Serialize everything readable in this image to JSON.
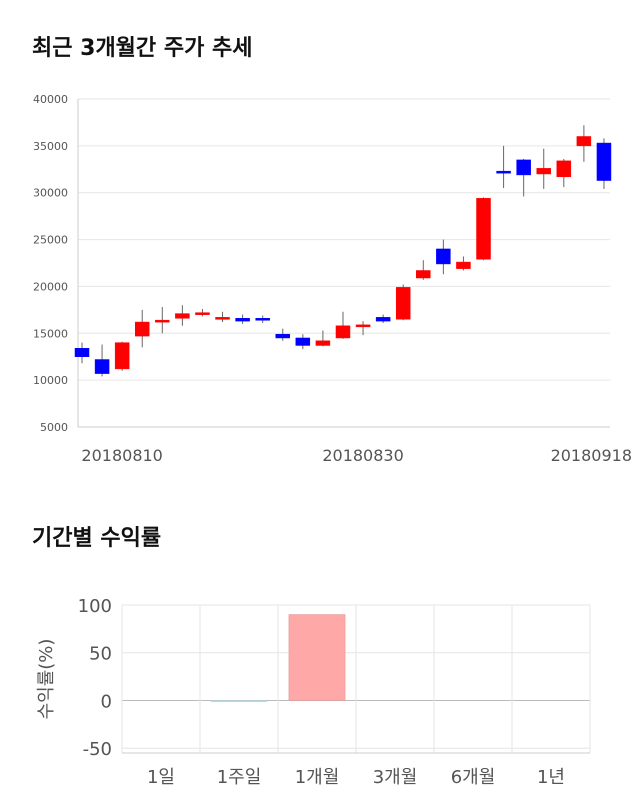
{
  "chart_data": [
    {
      "type": "candlestick",
      "title": "최근 3개월간 주가 추세",
      "ylim": [
        5000,
        40000
      ],
      "yticks": [
        "40000",
        "35000",
        "30000",
        "25000",
        "20000",
        "15000",
        "10000",
        "5000"
      ],
      "ytick_values": [
        40000,
        35000,
        30000,
        25000,
        20000,
        15000,
        10000,
        5000
      ],
      "xticks": [
        {
          "label": "20180810",
          "index": 2
        },
        {
          "label": "20180830",
          "index": 14
        },
        {
          "label": "20180918",
          "index": 26
        }
      ],
      "up_color": "#ff0000",
      "down_color": "#0000ff",
      "grid": true,
      "candles": [
        {
          "open": 13400,
          "close": 12500,
          "high": 14000,
          "low": 11800
        },
        {
          "open": 12200,
          "close": 10700,
          "high": 13800,
          "low": 10400
        },
        {
          "open": 11200,
          "close": 14000,
          "high": 14100,
          "low": 11000
        },
        {
          "open": 14700,
          "close": 16200,
          "high": 17500,
          "low": 13500
        },
        {
          "open": 16400,
          "close": 16400,
          "high": 17800,
          "low": 15000
        },
        {
          "open": 16600,
          "close": 17100,
          "high": 18000,
          "low": 15800
        },
        {
          "open": 17100,
          "close": 17200,
          "high": 17600,
          "low": 16800
        },
        {
          "open": 16700,
          "close": 16700,
          "high": 17300,
          "low": 16200
        },
        {
          "open": 16600,
          "close": 16300,
          "high": 17000,
          "low": 16000
        },
        {
          "open": 16600,
          "close": 16400,
          "high": 16900,
          "low": 16100
        },
        {
          "open": 14900,
          "close": 14500,
          "high": 15500,
          "low": 14200
        },
        {
          "open": 14500,
          "close": 13700,
          "high": 14900,
          "low": 13300
        },
        {
          "open": 13700,
          "close": 14200,
          "high": 15300,
          "low": 13600
        },
        {
          "open": 14500,
          "close": 15800,
          "high": 17300,
          "low": 14400
        },
        {
          "open": 15900,
          "close": 15900,
          "high": 16300,
          "low": 14800
        },
        {
          "open": 16700,
          "close": 16300,
          "high": 17000,
          "low": 16100
        },
        {
          "open": 16500,
          "close": 19900,
          "high": 20200,
          "low": 16400
        },
        {
          "open": 20900,
          "close": 21700,
          "high": 22800,
          "low": 20700
        },
        {
          "open": 24000,
          "close": 22400,
          "high": 25000,
          "low": 21300
        },
        {
          "open": 21900,
          "close": 22600,
          "high": 23200,
          "low": 21700
        },
        {
          "open": 22900,
          "close": 29400,
          "high": 29500,
          "low": 22800
        },
        {
          "open": 32300,
          "close": 32100,
          "high": 35000,
          "low": 30500
        },
        {
          "open": 33500,
          "close": 31900,
          "high": 33600,
          "low": 29600
        },
        {
          "open": 32000,
          "close": 32600,
          "high": 34700,
          "low": 30400
        },
        {
          "open": 31700,
          "close": 33400,
          "high": 33600,
          "low": 30600
        },
        {
          "open": 35000,
          "close": 36000,
          "high": 37200,
          "low": 33300
        },
        {
          "open": 35300,
          "close": 31300,
          "high": 35800,
          "low": 30400
        }
      ]
    },
    {
      "type": "bar",
      "title": "기간별 수익률",
      "ylabel": "수익률(%)",
      "ylim": [
        -55,
        100
      ],
      "yticks": [
        "100",
        "50",
        "0",
        "-50"
      ],
      "ytick_values": [
        100,
        50,
        0,
        -50
      ],
      "categories": [
        "1일",
        "1주일",
        "1개월",
        "3개월",
        "6개월",
        "1년"
      ],
      "values": [
        0,
        -1.5,
        90,
        0,
        0,
        0
      ],
      "positive_color": "#ffa8a8",
      "negative_color": "#a8dced",
      "grid": true
    }
  ]
}
